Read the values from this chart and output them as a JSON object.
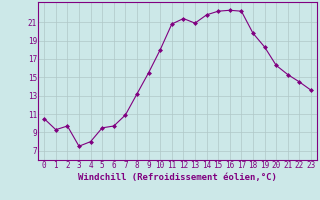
{
  "x": [
    0,
    1,
    2,
    3,
    4,
    5,
    6,
    7,
    8,
    9,
    10,
    11,
    12,
    13,
    14,
    15,
    16,
    17,
    18,
    19,
    20,
    21,
    22,
    23
  ],
  "y": [
    10.5,
    9.3,
    9.7,
    7.5,
    8.0,
    9.5,
    9.7,
    10.9,
    13.2,
    15.5,
    18.0,
    20.8,
    21.4,
    20.9,
    21.8,
    22.2,
    22.3,
    22.2,
    19.8,
    18.3,
    16.3,
    15.3,
    14.5,
    13.6
  ],
  "line_color": "#800080",
  "marker": "D",
  "markersize": 2.0,
  "linewidth": 0.8,
  "bg_color": "#cce8e8",
  "grid_color": "#b0c8c8",
  "xlabel": "Windchill (Refroidissement éolien,°C)",
  "xlabel_fontsize": 6.5,
  "ylabel_ticks": [
    7,
    9,
    11,
    13,
    15,
    17,
    19,
    21
  ],
  "ylim": [
    6.0,
    23.2
  ],
  "xlim": [
    -0.5,
    23.5
  ],
  "tick_fontsize": 5.5,
  "xticks": [
    0,
    1,
    2,
    3,
    4,
    5,
    6,
    7,
    8,
    9,
    10,
    11,
    12,
    13,
    14,
    15,
    16,
    17,
    18,
    19,
    20,
    21,
    22,
    23
  ]
}
